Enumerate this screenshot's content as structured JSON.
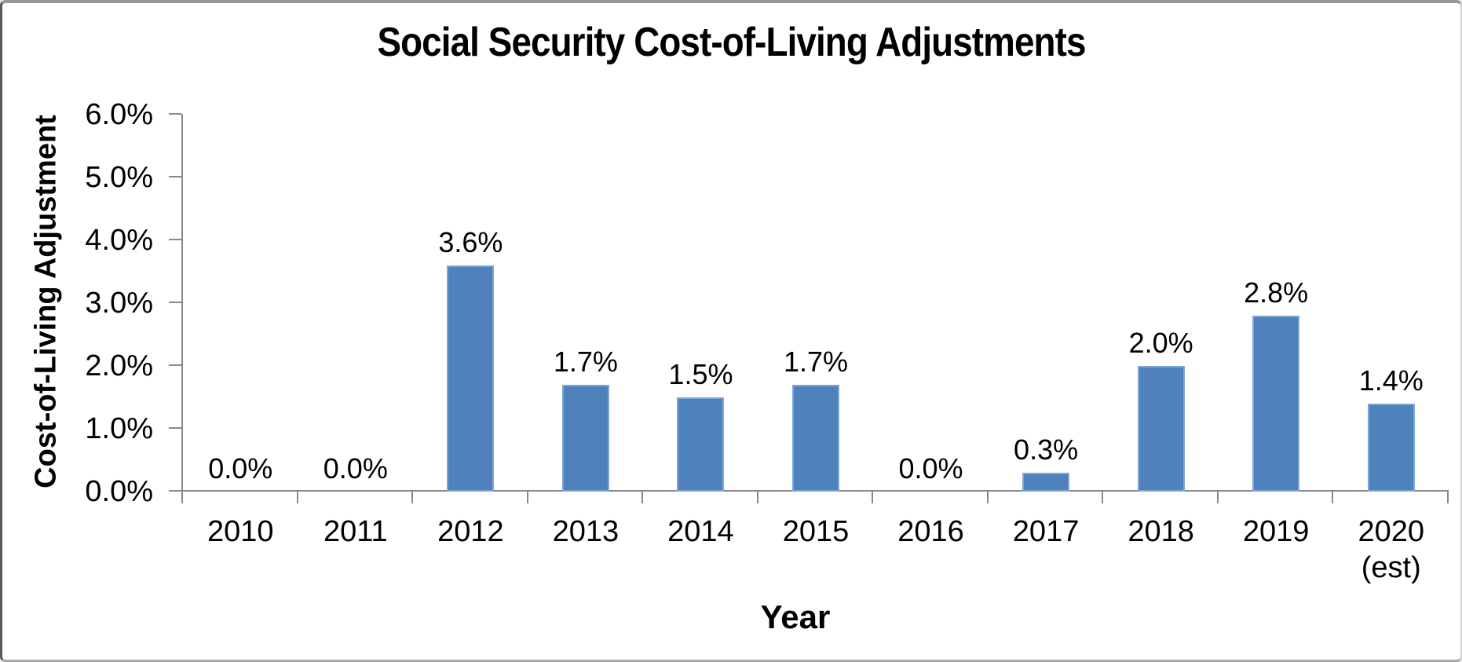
{
  "chart_data": {
    "type": "bar",
    "title": "Social Security Cost-of-Living Adjustments",
    "xlabel": "Year",
    "ylabel": "Cost-of-Living Adjustment",
    "categories": [
      {
        "label": "2010",
        "sublabel": ""
      },
      {
        "label": "2011",
        "sublabel": ""
      },
      {
        "label": "2012",
        "sublabel": ""
      },
      {
        "label": "2013",
        "sublabel": ""
      },
      {
        "label": "2014",
        "sublabel": ""
      },
      {
        "label": "2015",
        "sublabel": ""
      },
      {
        "label": "2016",
        "sublabel": ""
      },
      {
        "label": "2017",
        "sublabel": ""
      },
      {
        "label": "2018",
        "sublabel": ""
      },
      {
        "label": "2019",
        "sublabel": ""
      },
      {
        "label": "2020",
        "sublabel": "(est)"
      }
    ],
    "values": [
      0.0,
      0.0,
      3.6,
      1.7,
      1.5,
      1.7,
      0.0,
      0.3,
      2.0,
      2.8,
      1.4
    ],
    "data_labels": [
      "0.0%",
      "0.0%",
      "3.6%",
      "1.7%",
      "1.5%",
      "1.7%",
      "0.0%",
      "0.3%",
      "2.0%",
      "2.8%",
      "1.4%"
    ],
    "y_ticks": [
      "6.0%",
      "5.0%",
      "4.0%",
      "3.0%",
      "2.0%",
      "1.0%",
      "0.0%"
    ],
    "ylim": [
      0,
      6
    ],
    "y_tick_step": 1,
    "grid": false,
    "legend_position": "none",
    "bar_color": "#4F81BD",
    "bar_border_color": "#7EA6D6",
    "axis_color": "#898989",
    "text_color": "#000000",
    "background_color": "#FFFFFF"
  }
}
